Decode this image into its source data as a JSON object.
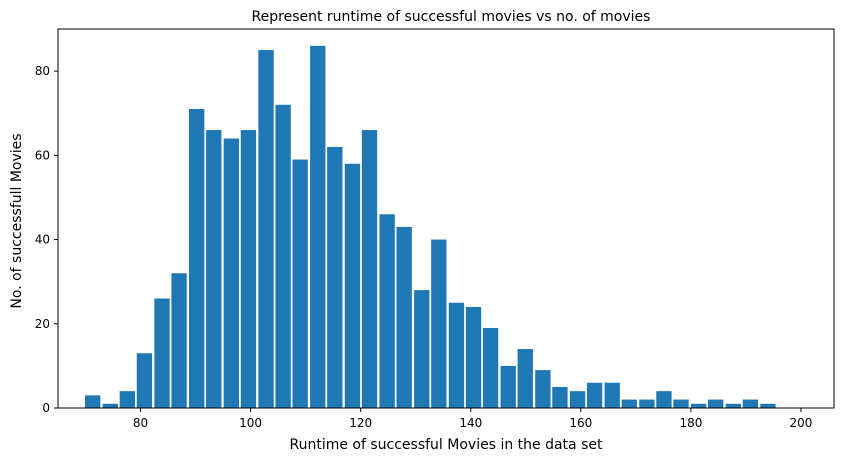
{
  "chart_data": {
    "type": "bar",
    "title": "Represent runtime of successful movies vs no. of movies",
    "xlabel": "Runtime of successful Movies in the data set",
    "ylabel": "No. of successfull  Movies",
    "xlim": [
      65,
      206
    ],
    "ylim": [
      0,
      90
    ],
    "xticks": [
      80,
      100,
      120,
      140,
      160,
      180,
      200
    ],
    "yticks": [
      0,
      20,
      40,
      60,
      80
    ],
    "bar_color": "#1f77b4",
    "grid": false,
    "x": [
      71.3,
      74.5,
      77.6,
      80.7,
      83.9,
      87.0,
      90.2,
      93.3,
      96.5,
      99.6,
      102.8,
      105.9,
      109.0,
      112.2,
      115.3,
      118.5,
      121.6,
      124.8,
      127.9,
      131.1,
      134.2,
      137.4,
      140.5,
      143.6,
      146.8,
      149.9,
      153.1,
      156.2,
      159.4,
      162.5,
      165.7,
      168.8,
      172.0,
      175.1,
      178.2,
      181.4,
      184.5,
      187.7,
      190.8,
      194.0,
      197.1,
      200.3
    ],
    "values": [
      3,
      1,
      4,
      13,
      26,
      32,
      71,
      66,
      64,
      66,
      85,
      72,
      59,
      86,
      62,
      58,
      66,
      46,
      43,
      28,
      40,
      25,
      24,
      19,
      10,
      14,
      9,
      5,
      4,
      6,
      6,
      2,
      2,
      4,
      2,
      1,
      2,
      1,
      2,
      1,
      0,
      0
    ],
    "bin_width": 3.15
  }
}
